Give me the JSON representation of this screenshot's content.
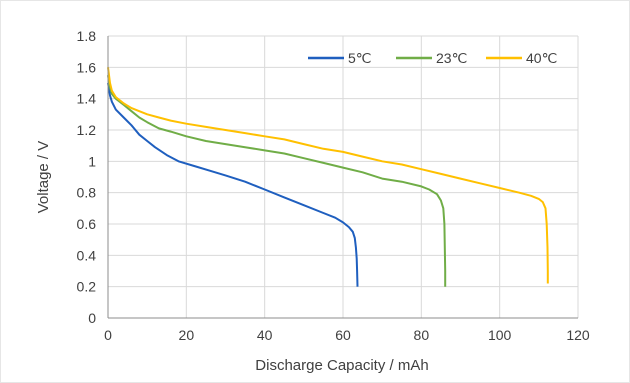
{
  "chart_data": {
    "type": "line",
    "xlabel": "Discharge Capacity / mAh",
    "ylabel": "Voltage / V",
    "xlim": [
      0,
      120
    ],
    "ylim": [
      0,
      1.8
    ],
    "x_ticks": [
      0,
      20,
      40,
      60,
      80,
      100,
      120
    ],
    "y_ticks": [
      0,
      0.2,
      0.4,
      0.6,
      0.8,
      1,
      1.2,
      1.4,
      1.6,
      1.8
    ],
    "x_tick_labels": [
      "0",
      "20",
      "40",
      "60",
      "80",
      "100",
      "120"
    ],
    "y_tick_labels": [
      "0",
      "0.2",
      "0.4",
      "0.6",
      "0.8",
      "1",
      "1.2",
      "1.4",
      "1.6",
      "1.8"
    ],
    "grid": true,
    "legend_position": "top-right",
    "series": [
      {
        "name": "5℃",
        "color": "#1f5fbf",
        "points": [
          [
            0,
            1.5
          ],
          [
            0.5,
            1.42
          ],
          [
            1,
            1.38
          ],
          [
            2,
            1.33
          ],
          [
            4,
            1.28
          ],
          [
            6,
            1.23
          ],
          [
            8,
            1.17
          ],
          [
            10,
            1.13
          ],
          [
            12,
            1.09
          ],
          [
            15,
            1.04
          ],
          [
            18,
            1.0
          ],
          [
            22,
            0.97
          ],
          [
            26,
            0.94
          ],
          [
            30,
            0.91
          ],
          [
            35,
            0.87
          ],
          [
            40,
            0.82
          ],
          [
            45,
            0.77
          ],
          [
            50,
            0.72
          ],
          [
            55,
            0.67
          ],
          [
            58,
            0.64
          ],
          [
            60,
            0.61
          ],
          [
            61.5,
            0.58
          ],
          [
            62.5,
            0.55
          ],
          [
            63,
            0.51
          ],
          [
            63.3,
            0.45
          ],
          [
            63.5,
            0.38
          ],
          [
            63.6,
            0.3
          ],
          [
            63.7,
            0.2
          ]
        ]
      },
      {
        "name": "23℃",
        "color": "#70ad47",
        "points": [
          [
            0,
            1.55
          ],
          [
            0.5,
            1.47
          ],
          [
            1,
            1.43
          ],
          [
            2,
            1.4
          ],
          [
            4,
            1.36
          ],
          [
            6,
            1.32
          ],
          [
            8,
            1.28
          ],
          [
            10,
            1.25
          ],
          [
            13,
            1.21
          ],
          [
            16,
            1.19
          ],
          [
            20,
            1.16
          ],
          [
            25,
            1.13
          ],
          [
            30,
            1.11
          ],
          [
            35,
            1.09
          ],
          [
            40,
            1.07
          ],
          [
            45,
            1.05
          ],
          [
            50,
            1.02
          ],
          [
            55,
            0.99
          ],
          [
            60,
            0.96
          ],
          [
            65,
            0.93
          ],
          [
            70,
            0.89
          ],
          [
            75,
            0.87
          ],
          [
            80,
            0.84
          ],
          [
            82,
            0.82
          ],
          [
            84,
            0.79
          ],
          [
            85,
            0.75
          ],
          [
            85.6,
            0.7
          ],
          [
            85.9,
            0.6
          ],
          [
            86,
            0.45
          ],
          [
            86.1,
            0.3
          ],
          [
            86.1,
            0.2
          ]
        ]
      },
      {
        "name": "40℃",
        "color": "#ffc000",
        "points": [
          [
            0,
            1.6
          ],
          [
            0.5,
            1.5
          ],
          [
            1,
            1.45
          ],
          [
            2,
            1.41
          ],
          [
            4,
            1.37
          ],
          [
            6,
            1.34
          ],
          [
            8,
            1.32
          ],
          [
            10,
            1.3
          ],
          [
            13,
            1.28
          ],
          [
            16,
            1.26
          ],
          [
            20,
            1.24
          ],
          [
            25,
            1.22
          ],
          [
            30,
            1.2
          ],
          [
            35,
            1.18
          ],
          [
            40,
            1.16
          ],
          [
            45,
            1.14
          ],
          [
            50,
            1.11
          ],
          [
            55,
            1.08
          ],
          [
            60,
            1.06
          ],
          [
            65,
            1.03
          ],
          [
            70,
            1.0
          ],
          [
            75,
            0.98
          ],
          [
            80,
            0.95
          ],
          [
            85,
            0.92
          ],
          [
            90,
            0.89
          ],
          [
            95,
            0.86
          ],
          [
            100,
            0.83
          ],
          [
            105,
            0.8
          ],
          [
            108,
            0.78
          ],
          [
            110,
            0.76
          ],
          [
            111,
            0.74
          ],
          [
            111.7,
            0.7
          ],
          [
            112,
            0.6
          ],
          [
            112.2,
            0.45
          ],
          [
            112.3,
            0.3
          ],
          [
            112.3,
            0.22
          ]
        ]
      }
    ]
  }
}
